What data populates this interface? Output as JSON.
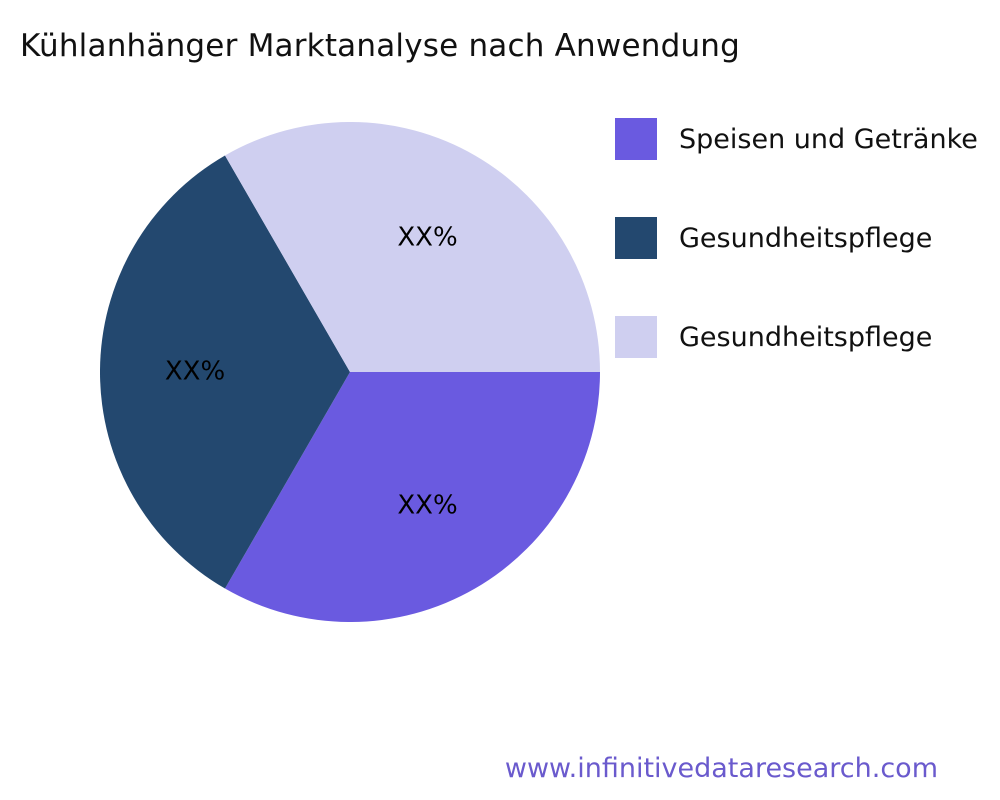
{
  "title": "Kühlanhänger Marktanalyse nach Anwendung",
  "footer": {
    "website": "www.infinitivedataresearch.com",
    "color": "#6a5acd"
  },
  "chart_data": {
    "type": "pie",
    "title": "Kühlanhänger Marktanalyse nach Anwendung",
    "start_angle_deg": 0,
    "direction": "clockwise",
    "legend_position": "right",
    "label_color": "#000000",
    "background": "#ffffff",
    "slices": [
      {
        "label": "Speisen und Getränke",
        "value": 33.33,
        "display": "XX%",
        "color": "#6a5ae0"
      },
      {
        "label": "Gesundheitspflege",
        "value": 33.33,
        "display": "XX%",
        "color": "#23486f"
      },
      {
        "label": "Gesundheitspflege",
        "value": 33.33,
        "display": "XX%",
        "color": "#cfcff0"
      }
    ]
  }
}
